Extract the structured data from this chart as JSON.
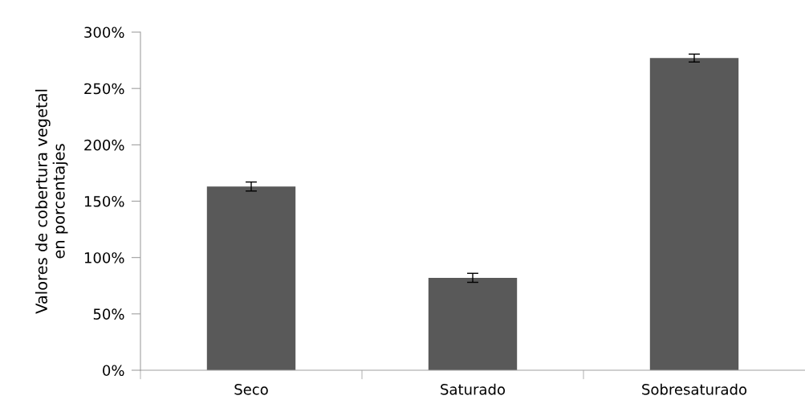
{
  "chart_data": {
    "type": "bar",
    "ylabel": "Valores de cobertura vegetal\nen porcentajes",
    "categories": [
      "Seco",
      "Saturado",
      "Sobresaturado"
    ],
    "values": [
      163,
      82,
      277
    ],
    "errors": [
      4,
      4,
      3.5
    ],
    "color": "#595959",
    "ylim": [
      0,
      300
    ],
    "yticks": [
      {
        "value": 0,
        "label": "0%"
      },
      {
        "value": 50,
        "label": "50%"
      },
      {
        "value": 100,
        "label": "100%"
      },
      {
        "value": 150,
        "label": "150%"
      },
      {
        "value": 200,
        "label": "200%"
      },
      {
        "value": 250,
        "label": "250%"
      },
      {
        "value": 300,
        "label": "300%"
      }
    ],
    "grid": false,
    "legend": false
  }
}
